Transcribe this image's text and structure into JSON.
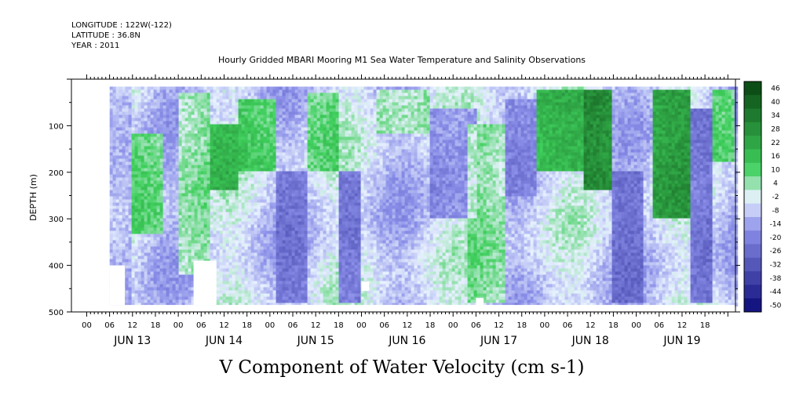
{
  "header": {
    "longitude": "LONGITUDE : 122W(-122)",
    "latitude": "LATITUDE : 36.8N",
    "year": "YEAR : 2011",
    "title": "Hourly Gridded MBARI Mooring M1 Sea Water Temperature and Salinity Observations"
  },
  "bottom_title": "V Component of Water Velocity (cm s-1)",
  "colors": {
    "strong_negative": "#0a0a78",
    "negative": "#8a8ee8",
    "zero": "#e8f2ff",
    "positive": "#3fcf5c",
    "strong_positive": "#0c4a14",
    "missing": "#ffffff"
  },
  "chart_data": {
    "type": "heatmap",
    "title": "Hourly Gridded MBARI Mooring M1 Sea Water Temperature and Salinity Observations",
    "subtitle": "V Component of Water Velocity (cm s-1)",
    "xlabel": "",
    "ylabel": "DEPTH (m)",
    "x_axis": {
      "unit": "hours since JUN 13 00",
      "range": [
        -4,
        170
      ],
      "hour_ticks": [
        "00",
        "06",
        "12",
        "18",
        "00",
        "06",
        "12",
        "18",
        "00",
        "06",
        "12",
        "18",
        "00",
        "06",
        "12",
        "18",
        "00",
        "06",
        "12",
        "18",
        "00",
        "06",
        "12",
        "18",
        "00",
        "06",
        "12",
        "18"
      ],
      "day_labels": [
        "JUN 13",
        "JUN 14",
        "JUN 15",
        "JUN 16",
        "JUN 17",
        "JUN 18",
        "JUN 19"
      ]
    },
    "y_axis": {
      "range": [
        500,
        0
      ],
      "inverted": true,
      "tick_labels": [
        "100",
        "200",
        "300",
        "400",
        "500"
      ],
      "tick_values": [
        100,
        200,
        300,
        400,
        500
      ]
    },
    "data_extent": {
      "x_start_hours": 6,
      "x_end_hours": 170,
      "depth_top": 16,
      "depth_bottom": 485
    },
    "colorbar": {
      "levels": [
        46,
        40,
        34,
        28,
        22,
        16,
        10,
        4,
        -2,
        -8,
        -14,
        -20,
        -26,
        -32,
        -38,
        -44,
        -50
      ],
      "range": [
        -50,
        50
      ]
    },
    "field": {
      "description": "estimated V velocity bands by time (hours) and depth",
      "bands": [
        {
          "t0": 6,
          "t1": 12,
          "depth_top": 16,
          "depth_bottom": 485,
          "value": -8
        },
        {
          "t0": 12,
          "t1": 20,
          "depth_top": 120,
          "depth_bottom": 330,
          "value": 14
        },
        {
          "t0": 24,
          "t1": 32,
          "depth_top": 30,
          "depth_bottom": 420,
          "value": 10
        },
        {
          "t0": 32,
          "t1": 40,
          "depth_top": 100,
          "depth_bottom": 240,
          "value": 20
        },
        {
          "t0": 40,
          "t1": 50,
          "depth_top": 40,
          "depth_bottom": 200,
          "value": 16
        },
        {
          "t0": 50,
          "t1": 58,
          "depth_top": 200,
          "depth_bottom": 480,
          "value": -16
        },
        {
          "t0": 58,
          "t1": 66,
          "depth_top": 30,
          "depth_bottom": 200,
          "value": 12
        },
        {
          "t0": 66,
          "t1": 72,
          "depth_top": 200,
          "depth_bottom": 480,
          "value": -20
        },
        {
          "t0": 76,
          "t1": 90,
          "depth_top": 20,
          "depth_bottom": 120,
          "value": 8
        },
        {
          "t0": 90,
          "t1": 102,
          "depth_top": 60,
          "depth_bottom": 300,
          "value": -14
        },
        {
          "t0": 100,
          "t1": 110,
          "depth_top": 100,
          "depth_bottom": 480,
          "value": 10
        },
        {
          "t0": 110,
          "t1": 118,
          "depth_top": 40,
          "depth_bottom": 250,
          "value": -12
        },
        {
          "t0": 118,
          "t1": 130,
          "depth_top": 20,
          "depth_bottom": 200,
          "value": 22
        },
        {
          "t0": 130,
          "t1": 138,
          "depth_top": 20,
          "depth_bottom": 240,
          "value": 34
        },
        {
          "t0": 138,
          "t1": 146,
          "depth_top": 200,
          "depth_bottom": 480,
          "value": -18
        },
        {
          "t0": 148,
          "t1": 158,
          "depth_top": 20,
          "depth_bottom": 300,
          "value": 28
        },
        {
          "t0": 158,
          "t1": 164,
          "depth_top": 60,
          "depth_bottom": 480,
          "value": -20
        },
        {
          "t0": 164,
          "t1": 170,
          "depth_top": 20,
          "depth_bottom": 180,
          "value": 16
        }
      ],
      "missing_regions": [
        {
          "t0": 0,
          "t1": 6,
          "depth_top": 16,
          "depth_bottom": 485
        },
        {
          "t0": 6,
          "t1": 10,
          "depth_top": 400,
          "depth_bottom": 485
        },
        {
          "t0": 28,
          "t1": 34,
          "depth_top": 390,
          "depth_bottom": 485
        },
        {
          "t0": 72,
          "t1": 74,
          "depth_top": 435,
          "depth_bottom": 455
        },
        {
          "t0": 102,
          "t1": 104,
          "depth_top": 470,
          "depth_bottom": 485
        }
      ]
    }
  }
}
